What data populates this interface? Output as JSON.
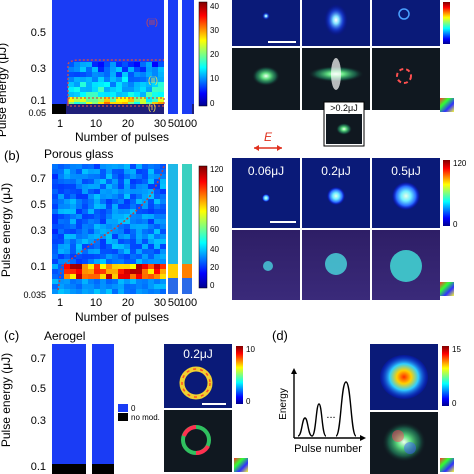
{
  "figure": {
    "panel_a": {
      "ylabel": "Pulse energy (μJ)",
      "xlabel": "Number of pulses",
      "yticks": [
        "0.5",
        "0.3",
        "0.1",
        "0.05"
      ],
      "xticks": [
        "1",
        "10",
        "20",
        "30",
        "50",
        "100"
      ],
      "cbar_ticks": [
        "40",
        "30",
        "20",
        "10",
        "0"
      ],
      "region_labels": [
        "(ii)",
        "(i)"
      ],
      "threshold_label": ">0.2μJ"
    },
    "laser_field_label": "E",
    "panel_b": {
      "tag": "(b)",
      "title": "Porous glass",
      "ylabel": "Pulse energy (μJ)",
      "xlabel": "Number of pulses",
      "yticks": [
        "0.7",
        "0.5",
        "0.3",
        "0.1",
        "0.035"
      ],
      "xticks": [
        "1",
        "10",
        "20",
        "30",
        "50",
        "100"
      ],
      "cbar_ticks": [
        "120",
        "100",
        "80",
        "60",
        "40",
        "20",
        "0"
      ],
      "image_labels": [
        "0.06μJ",
        "0.2μJ",
        "0.5μJ"
      ],
      "image_cbar_ticks": [
        "120",
        "0"
      ]
    },
    "panel_c": {
      "tag": "(c)",
      "title": "Aerogel",
      "ylabel": "Pulse energy (μJ)",
      "yticks": [
        "0.7",
        "0.5",
        "0.3",
        "0.1"
      ],
      "legend": [
        "0",
        "no mod."
      ],
      "image_label": "0.2μJ",
      "image_cbar_ticks": [
        "10",
        "0"
      ]
    },
    "panel_d": {
      "tag": "(d)",
      "ylabel": "Energy",
      "xlabel": "Pulse number",
      "ellipsis": "...",
      "image_cbar_ticks": [
        "15",
        "0"
      ]
    },
    "colors": {
      "jet_low": "#0a1aa8",
      "jet_high": "#c8141e",
      "dashed_border": "#d04a4a",
      "arrow": "#e0301e"
    }
  }
}
